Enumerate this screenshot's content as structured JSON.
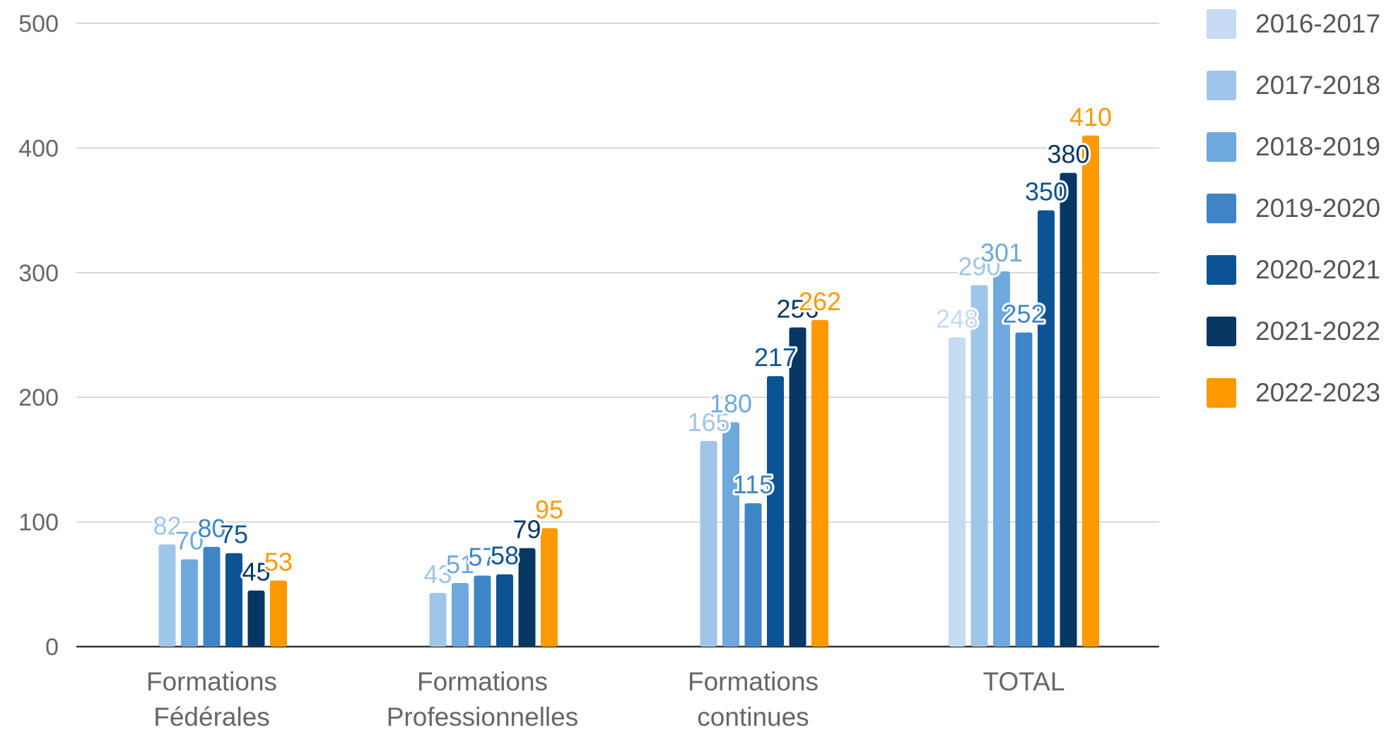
{
  "chart_data": {
    "type": "bar",
    "title": "",
    "xlabel": "",
    "ylabel": "",
    "ylim": [
      0,
      500
    ],
    "yticks": [
      0,
      100,
      200,
      300,
      400,
      500
    ],
    "grid": true,
    "legend_position": "right",
    "categories": [
      [
        "Formations",
        "Fédérales"
      ],
      [
        "Formations",
        "Professionnelles"
      ],
      [
        "Formations",
        "continues"
      ],
      [
        "TOTAL"
      ]
    ],
    "series": [
      {
        "name": "2016-2017",
        "color": "#c6daf1",
        "label_color": "#c6daf1",
        "values": [
          null,
          null,
          null,
          248
        ]
      },
      {
        "name": "2017-2018",
        "color": "#9fc5e8",
        "label_color": "#9fc5e8",
        "values": [
          82,
          43,
          165,
          290
        ]
      },
      {
        "name": "2018-2019",
        "color": "#6fa8dc",
        "label_color": "#6fa8dc",
        "values": [
          70,
          51,
          180,
          301
        ]
      },
      {
        "name": "2019-2020",
        "color": "#3d85c6",
        "label_color": "#3d85c6",
        "values": [
          80,
          57,
          115,
          252
        ]
      },
      {
        "name": "2020-2021",
        "color": "#0b5394",
        "label_color": "#0b5394",
        "values": [
          75,
          58,
          217,
          350
        ]
      },
      {
        "name": "2021-2022",
        "color": "#073763",
        "label_color": "#073763",
        "values": [
          45,
          79,
          256,
          380
        ]
      },
      {
        "name": "2022-2023",
        "color": "#ff9900",
        "label_color": "#ff9900",
        "values": [
          53,
          95,
          262,
          410
        ]
      }
    ]
  }
}
